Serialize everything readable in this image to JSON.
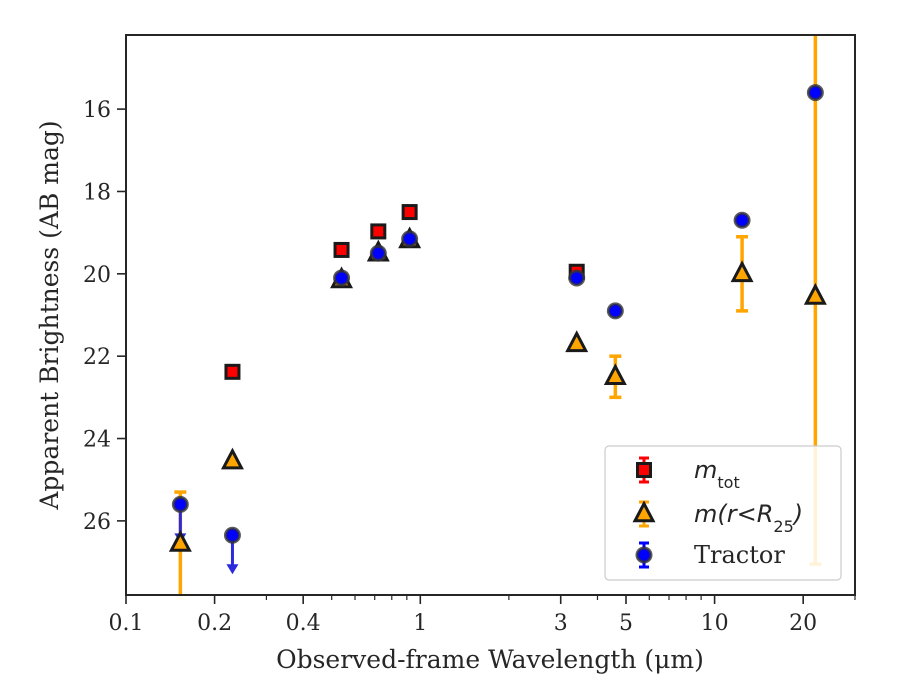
{
  "chart_data": {
    "type": "scatter",
    "xlabel": "Observed-frame Wavelength (μm)",
    "ylabel": "Apparent Brightness (AB mag)",
    "xscale": "log",
    "xlim": [
      0.1,
      30
    ],
    "ylim": [
      27.8,
      14.2
    ],
    "y_inverted": true,
    "grid": false,
    "legend_position": "lower-right",
    "xticks": [
      {
        "value": 0.1,
        "label": "0.1"
      },
      {
        "value": 0.2,
        "label": "0.2"
      },
      {
        "value": 0.4,
        "label": "0.4"
      },
      {
        "value": 1,
        "label": "1"
      },
      {
        "value": 3,
        "label": "3"
      },
      {
        "value": 5,
        "label": "5"
      },
      {
        "value": 10,
        "label": "10"
      },
      {
        "value": 20,
        "label": "20"
      }
    ],
    "yticks": [
      {
        "value": 16,
        "label": "16"
      },
      {
        "value": 18,
        "label": "18"
      },
      {
        "value": 20,
        "label": "20"
      },
      {
        "value": 22,
        "label": "22"
      },
      {
        "value": 24,
        "label": "24"
      },
      {
        "value": 26,
        "label": "26"
      }
    ],
    "series": [
      {
        "name": "m_tot",
        "label_main": "m",
        "label_sub": "tot",
        "marker": "square",
        "color": "#ff0000",
        "edge_color": "#1a1a1a",
        "errbar_color": "#ff0000",
        "points": [
          {
            "x": 0.23,
            "y": 22.38
          },
          {
            "x": 0.54,
            "y": 19.42
          },
          {
            "x": 0.72,
            "y": 18.97
          },
          {
            "x": 0.92,
            "y": 18.5
          },
          {
            "x": 3.4,
            "y": 19.95
          }
        ]
      },
      {
        "name": "m(r<R25)",
        "label_main": "m(r<R",
        "label_sub": "25",
        "label_tail": ")",
        "marker": "triangle",
        "color": "#ffa500",
        "edge_color": "#1a1a1a",
        "errbar_color": "#ffa500",
        "points": [
          {
            "x": 0.153,
            "y": 26.55,
            "err_low": 1.85,
            "err_high": 1.25
          },
          {
            "x": 0.23,
            "y": 24.55
          },
          {
            "x": 0.54,
            "y": 20.15
          },
          {
            "x": 0.72,
            "y": 19.5
          },
          {
            "x": 0.92,
            "y": 19.18
          },
          {
            "x": 3.4,
            "y": 21.7
          },
          {
            "x": 4.6,
            "y": 22.5,
            "err_low": 0.5,
            "err_high": 0.5
          },
          {
            "x": 12.4,
            "y": 20.0,
            "err_low": 0.9,
            "err_high": 0.9
          },
          {
            "x": 22.0,
            "y": 20.55,
            "err_low": 6.5,
            "err_high": 6.4
          }
        ]
      },
      {
        "name": "Tractor",
        "label_main": "Tractor",
        "marker": "circle",
        "color": "#0000ff",
        "edge_color": "#333333",
        "errbar_color": "#0000ff",
        "points": [
          {
            "x": 0.153,
            "y": 25.6,
            "upper_limit_arrow": true
          },
          {
            "x": 0.23,
            "y": 26.35,
            "upper_limit_arrow": true
          },
          {
            "x": 0.54,
            "y": 20.1
          },
          {
            "x": 0.72,
            "y": 19.5
          },
          {
            "x": 0.92,
            "y": 19.15
          },
          {
            "x": 3.4,
            "y": 20.1
          },
          {
            "x": 4.6,
            "y": 20.9
          },
          {
            "x": 12.4,
            "y": 18.7
          },
          {
            "x": 22.0,
            "y": 15.6
          }
        ]
      }
    ]
  }
}
